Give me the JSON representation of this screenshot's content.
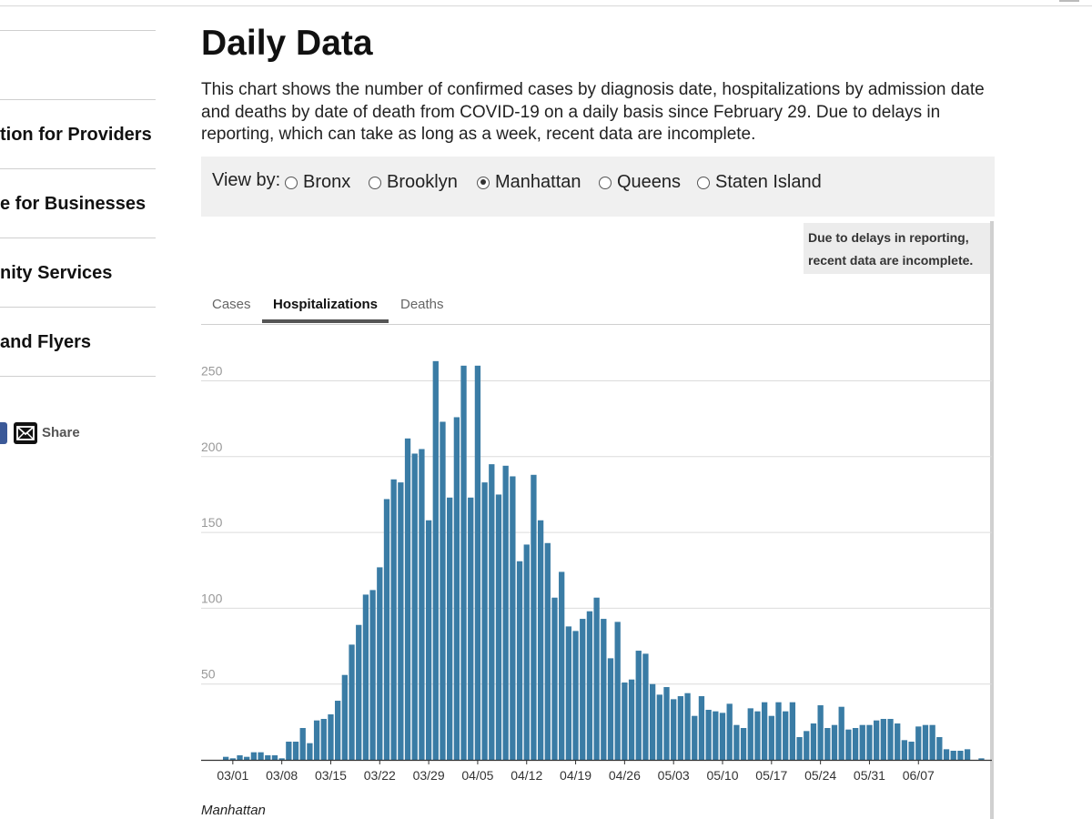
{
  "sidebar": {
    "items": [
      {
        "label": "tion for Providers"
      },
      {
        "label": "e for Businesses"
      },
      {
        "label": "nity Services"
      },
      {
        "label": "and Flyers"
      }
    ],
    "share_label": "Share"
  },
  "main": {
    "title": "Daily Data",
    "description": "This chart shows the number of confirmed cases by diagnosis date, hospitalizations by admission date and deaths by date of death from COVID-19 on a daily basis since February 29. Due to delays in reporting, which can take as long as a week, recent data are incomplete.",
    "view_by": {
      "label": "View by:",
      "options": [
        {
          "label": "Bronx",
          "selected": false
        },
        {
          "label": "Brooklyn",
          "selected": false
        },
        {
          "label": "Manhattan",
          "selected": true
        },
        {
          "label": "Queens",
          "selected": false
        },
        {
          "label": "Staten Island",
          "selected": false
        }
      ]
    },
    "note": {
      "line1": "Due to delays in reporting,",
      "line2": "recent data are incomplete."
    },
    "tabs": [
      {
        "label": "Cases",
        "active": false
      },
      {
        "label": "Hospitalizations",
        "active": true
      },
      {
        "label": "Deaths",
        "active": false
      }
    ],
    "caption": "Manhattan"
  },
  "colors": {
    "bar": "#3a7ca5",
    "grid": "#dcdcdc",
    "axis": "#333333",
    "tick_label": "#999999"
  },
  "chart_data": {
    "type": "bar",
    "title": "",
    "xlabel": "",
    "ylabel": "",
    "ylim": [
      0,
      270
    ],
    "y_ticks": [
      50,
      100,
      150,
      200,
      250
    ],
    "x_tick_labels": [
      "03/01",
      "03/08",
      "03/15",
      "03/22",
      "03/29",
      "04/05",
      "04/12",
      "04/19",
      "04/26",
      "05/03",
      "05/10",
      "05/17",
      "05/24",
      "05/31",
      "06/07"
    ],
    "x_tick_start_index": 1,
    "x_tick_step": 7,
    "start_date": "02/29",
    "grid": true,
    "values": [
      2,
      1,
      3,
      2,
      5,
      5,
      3,
      3,
      1,
      12,
      12,
      21,
      11,
      26,
      27,
      30,
      39,
      56,
      76,
      89,
      109,
      112,
      127,
      172,
      185,
      183,
      212,
      202,
      205,
      158,
      263,
      223,
      173,
      226,
      260,
      173,
      260,
      183,
      195,
      175,
      194,
      187,
      131,
      142,
      188,
      158,
      143,
      107,
      124,
      88,
      85,
      93,
      98,
      107,
      93,
      67,
      91,
      51,
      53,
      72,
      70,
      50,
      43,
      48,
      40,
      42,
      44,
      29,
      42,
      33,
      32,
      31,
      37,
      23,
      21,
      34,
      32,
      38,
      29,
      38,
      32,
      38,
      15,
      19,
      24,
      36,
      21,
      23,
      35,
      20,
      21,
      23,
      23,
      26,
      27,
      27,
      24,
      13,
      12,
      22,
      23,
      23,
      15,
      7,
      6,
      6,
      7,
      0,
      1
    ]
  }
}
